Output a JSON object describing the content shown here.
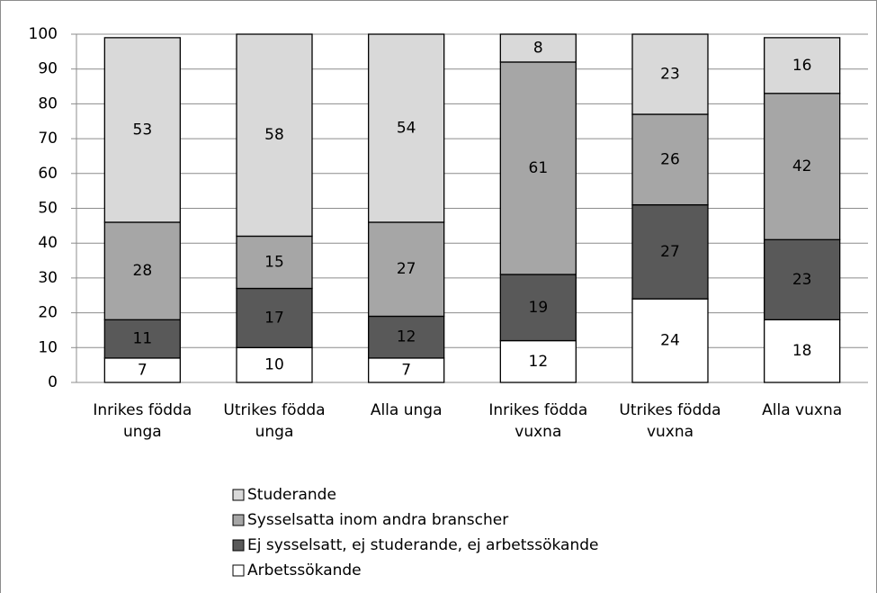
{
  "chart_data": {
    "type": "stacked_bar",
    "categories": [
      "Inrikes födda unga",
      "Utrikes födda unga",
      "Alla unga",
      "Inrikes födda vuxna",
      "Utrikes födda vuxna",
      "Alla vuxna"
    ],
    "series": [
      {
        "name": "Arbetssökande",
        "color": "#ffffff",
        "values": [
          7,
          10,
          7,
          12,
          24,
          18
        ]
      },
      {
        "name": "Ej sysselsatt, ej studerande, ej arbetssökande",
        "color": "#595959",
        "values": [
          11,
          17,
          12,
          19,
          27,
          23
        ]
      },
      {
        "name": "Sysselsatta inom andra branscher",
        "color": "#a6a6a6",
        "values": [
          28,
          15,
          27,
          61,
          26,
          42
        ]
      },
      {
        "name": "Studerande",
        "color": "#d9d9d9",
        "values": [
          53,
          58,
          54,
          8,
          23,
          16
        ]
      }
    ],
    "ylim": [
      0,
      100
    ],
    "yticks": [
      0,
      10,
      20,
      30,
      40,
      50,
      60,
      70,
      80,
      90,
      100
    ],
    "grid": true
  }
}
